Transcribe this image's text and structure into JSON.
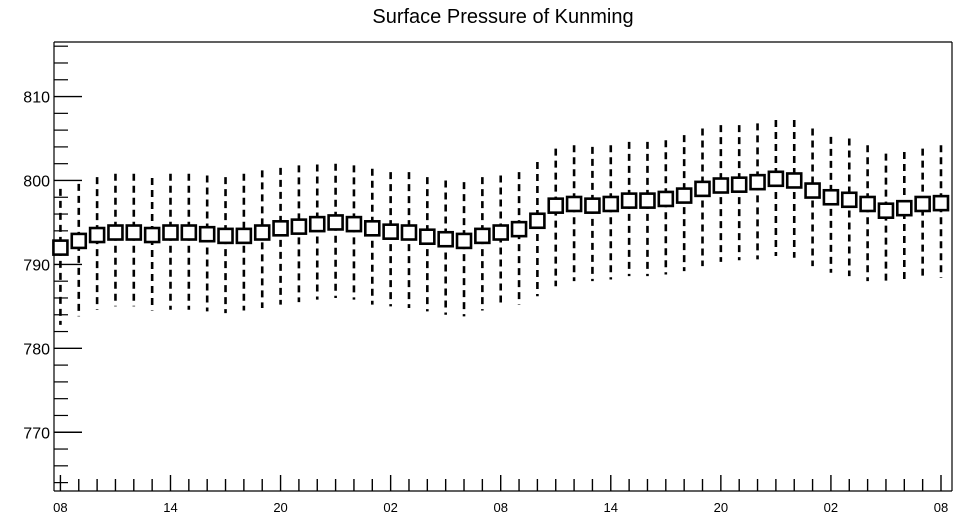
{
  "chart_data": {
    "type": "scatter",
    "title": "Surface Pressure of Kunming",
    "xlabel": "",
    "ylabel": "",
    "ylim": [
      763,
      816.5
    ],
    "xlim": [
      -0.35,
      48.6
    ],
    "yticks": [
      770,
      780,
      790,
      800,
      810
    ],
    "yminor_step": 2,
    "xtick_labels": [
      {
        "index": 0,
        "label": "08"
      },
      {
        "index": 6,
        "label": "14"
      },
      {
        "index": 12,
        "label": "20"
      },
      {
        "index": 18,
        "label": "02"
      },
      {
        "index": 24,
        "label": "08"
      },
      {
        "index": 30,
        "label": "14"
      },
      {
        "index": 36,
        "label": "20"
      },
      {
        "index": 42,
        "label": "02"
      },
      {
        "index": 48,
        "label": "08"
      }
    ],
    "grid": false,
    "legend": "none",
    "marker": "open-square",
    "error_style": "dashed",
    "colors": {
      "axis": "#000000",
      "marker_fill": "#ffffff",
      "marker_stroke": "#000000",
      "background": "#ffffff"
    },
    "series": [
      {
        "x": [
          0,
          1,
          2,
          3,
          4,
          5,
          6,
          7,
          8,
          9,
          10,
          11,
          12,
          13,
          14,
          15,
          16,
          17,
          18,
          19,
          20,
          21,
          22,
          23,
          24,
          25,
          26,
          27,
          28,
          29,
          30,
          31,
          32,
          33,
          34,
          35,
          36,
          37,
          38,
          39,
          40,
          41,
          42,
          43,
          44,
          45,
          46,
          47,
          48
        ],
        "y": [
          792.0,
          792.8,
          793.5,
          793.8,
          793.8,
          793.5,
          793.8,
          793.8,
          793.6,
          793.4,
          793.4,
          793.8,
          794.3,
          794.5,
          794.8,
          795.0,
          794.8,
          794.3,
          793.9,
          793.8,
          793.3,
          793.0,
          792.8,
          793.4,
          793.8,
          794.2,
          795.2,
          797.0,
          797.2,
          797.0,
          797.2,
          797.6,
          797.6,
          797.8,
          798.2,
          799.0,
          799.4,
          799.5,
          799.8,
          800.2,
          800.0,
          798.8,
          798.0,
          797.7,
          797.2,
          796.4,
          796.7,
          797.2,
          797.3
        ],
        "y_low": [
          782.8,
          783.8,
          784.6,
          785.0,
          785.0,
          784.5,
          784.6,
          784.6,
          784.4,
          784.2,
          784.5,
          784.8,
          785.2,
          785.5,
          785.8,
          786.0,
          785.8,
          785.2,
          785.0,
          784.8,
          784.4,
          784.0,
          783.8,
          784.5,
          785.0,
          785.2,
          786.2,
          787.4,
          788.0,
          788.0,
          788.2,
          788.6,
          788.6,
          788.8,
          789.2,
          789.8,
          790.3,
          790.5,
          790.6,
          791.0,
          790.8,
          789.8,
          789.0,
          788.6,
          788.0,
          787.5,
          787.8,
          788.2,
          788.4
        ],
        "y_high": [
          799.0,
          799.6,
          800.4,
          800.8,
          800.8,
          800.3,
          800.8,
          800.8,
          800.6,
          800.4,
          800.8,
          801.2,
          801.5,
          801.8,
          801.9,
          802.0,
          801.8,
          801.4,
          801.0,
          801.0,
          800.4,
          800.0,
          799.8,
          800.4,
          800.6,
          801.0,
          802.2,
          803.8,
          804.2,
          804.0,
          804.2,
          804.6,
          804.6,
          804.8,
          805.4,
          806.2,
          806.6,
          806.6,
          806.8,
          807.2,
          807.2,
          806.2,
          805.2,
          805.0,
          804.2,
          803.2,
          803.4,
          803.8,
          804.2
        ]
      }
    ]
  }
}
